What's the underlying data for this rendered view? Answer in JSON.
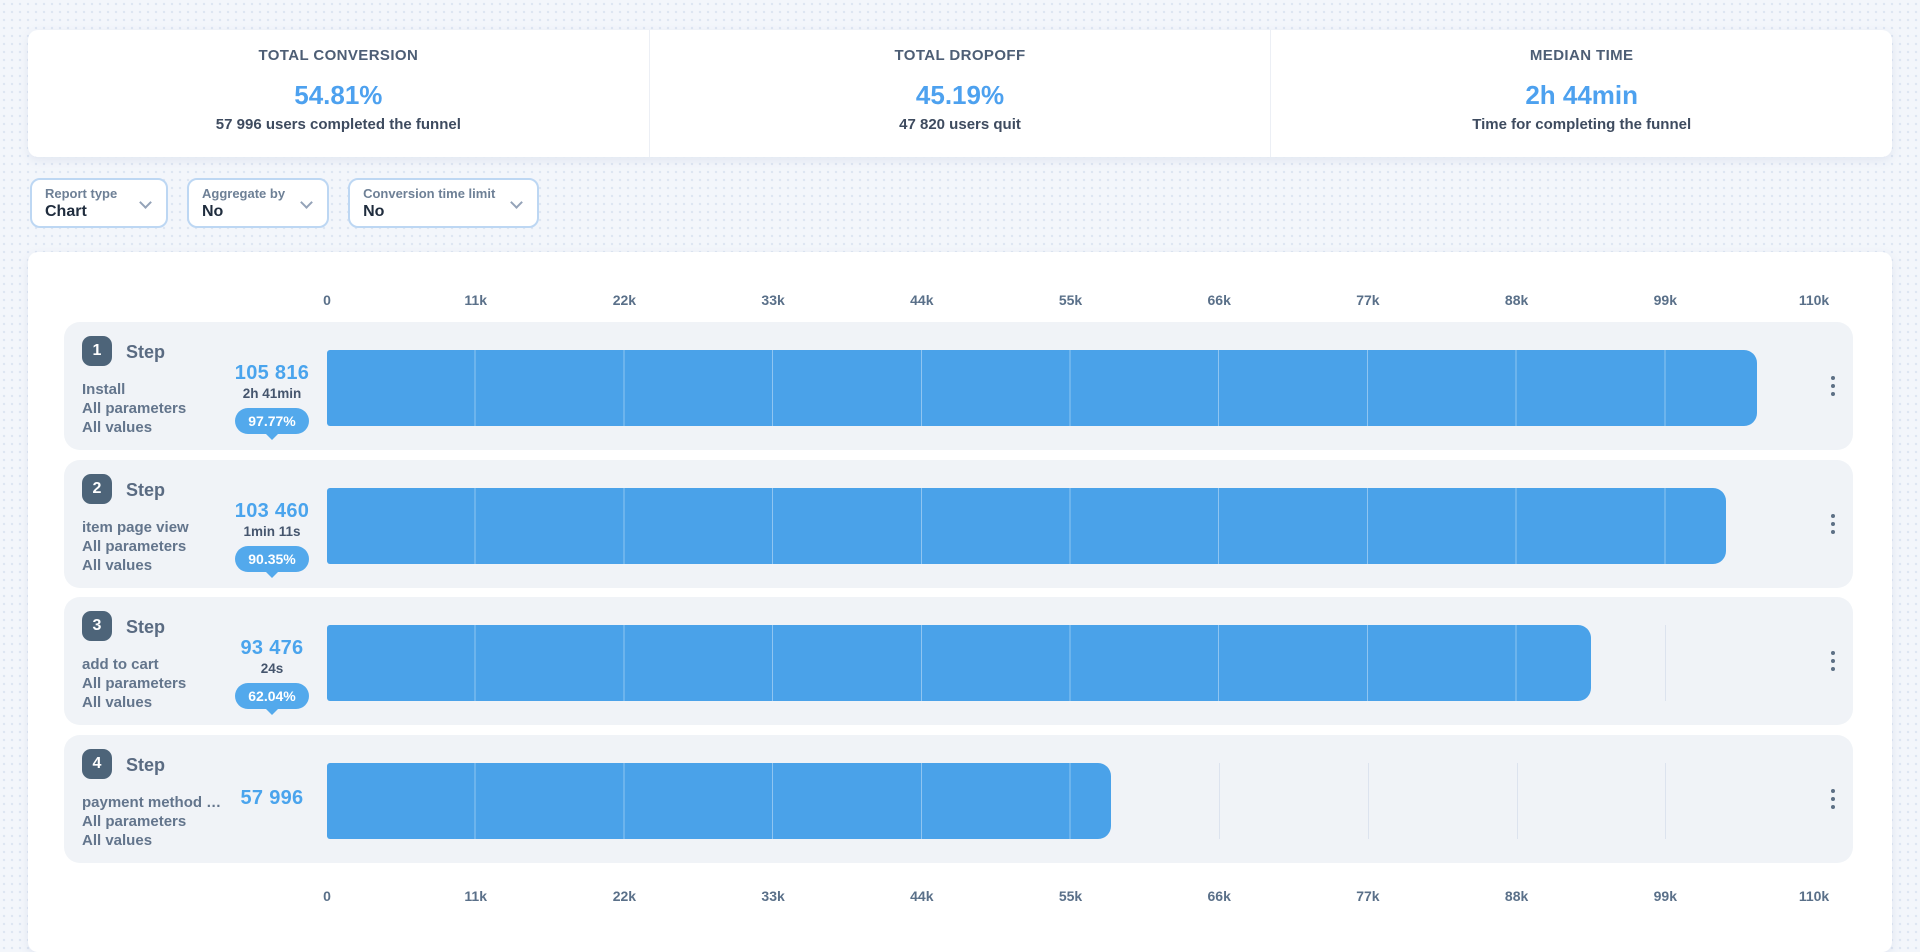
{
  "stats_cards": [
    {
      "title": "TOTAL CONVERSION",
      "value": "54.81%",
      "caption": "57 996 users completed the funnel"
    },
    {
      "title": "TOTAL DROPOFF",
      "value": "45.19%",
      "caption": "47 820 users quit"
    },
    {
      "title": "MEDIAN TIME",
      "value": "2h 44min",
      "caption": "Time for completing the funnel"
    }
  ],
  "filters": [
    {
      "label": "Report type",
      "value": "Chart"
    },
    {
      "label": "Aggregate by",
      "value": "No"
    },
    {
      "label": "Conversion time limit",
      "value": "No"
    }
  ],
  "chart_data": {
    "type": "bar",
    "orientation": "horizontal-funnel",
    "axis_max": 110000,
    "axis_ticks": [
      "0",
      "11k",
      "22k",
      "33k",
      "44k",
      "55k",
      "66k",
      "77k",
      "88k",
      "99k",
      "110k"
    ],
    "grid": true,
    "legend": "none",
    "bar_color": "#4aa2e9",
    "steps": [
      {
        "number": "1",
        "label": "Step",
        "event": "Install",
        "params": "All parameters",
        "values": "All values",
        "users": 105816,
        "users_display": "105 816",
        "median_time": "2h 41min",
        "conversion": "97.77%"
      },
      {
        "number": "2",
        "label": "Step",
        "event": "item page view",
        "params": "All parameters",
        "values": "All values",
        "users": 103460,
        "users_display": "103 460",
        "median_time": "1min 11s",
        "conversion": "90.35%"
      },
      {
        "number": "3",
        "label": "Step",
        "event": "add to cart",
        "params": "All parameters",
        "values": "All values",
        "users": 93476,
        "users_display": "93 476",
        "median_time": "24s",
        "conversion": "62.04%"
      },
      {
        "number": "4",
        "label": "Step",
        "event": "payment method …",
        "params": "All parameters",
        "values": "All values",
        "users": 57996,
        "users_display": "57 996",
        "median_time": "",
        "conversion": ""
      }
    ]
  },
  "icons": {
    "filter_dropdown": "chevron-down",
    "row_menu": "kebab-vertical-dots"
  },
  "colors": {
    "accent_blue": "#4aa2e9",
    "value_blue": "#4da1ef",
    "badge_bubble_blue": "#53a9ec",
    "step_badge_dark": "#4d6479",
    "row_background": "#f0f3f7",
    "page_background": "#f3f6fb",
    "slate_text": "#5a6b82"
  }
}
